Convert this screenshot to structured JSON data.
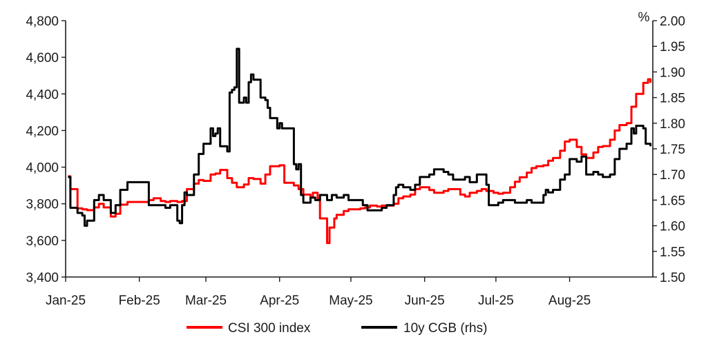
{
  "chart_data": {
    "type": "line",
    "title": "",
    "xlabel": "",
    "ylabel": "",
    "y2label": "%",
    "x_ticks": [
      "Jan-25",
      "Feb-25",
      "Mar-25",
      "Apr-25",
      "May-25",
      "Jun-25",
      "Jul-25",
      "Aug-25"
    ],
    "ylim": [
      3400,
      4800
    ],
    "y_ticks": [
      "3,400",
      "3,600",
      "3,800",
      "4,000",
      "4,200",
      "4,400",
      "4,600",
      "4,800"
    ],
    "y2lim": [
      1.5,
      2.0
    ],
    "y2_ticks": [
      "1.50",
      "1.55",
      "1.60",
      "1.65",
      "1.70",
      "1.75",
      "1.80",
      "1.85",
      "1.90",
      "1.95",
      "2.00"
    ],
    "grid": false,
    "legend_position": "bottom",
    "colors": {
      "csi": "#ff0000",
      "cgb": "#000000",
      "axis": "#1a1a1a"
    },
    "series": [
      {
        "name": "CSI 300 index",
        "axis": "left",
        "points": [
          [
            "2025-01-02",
            3950
          ],
          [
            "2025-01-03",
            3880
          ],
          [
            "2025-01-06",
            3775
          ],
          [
            "2025-01-08",
            3770
          ],
          [
            "2025-01-10",
            3765
          ],
          [
            "2025-01-13",
            3780
          ],
          [
            "2025-01-15",
            3800
          ],
          [
            "2025-01-17",
            3780
          ],
          [
            "2025-01-20",
            3730
          ],
          [
            "2025-01-22",
            3745
          ],
          [
            "2025-01-24",
            3795
          ],
          [
            "2025-01-27",
            3810
          ],
          [
            "2025-02-05",
            3820
          ],
          [
            "2025-02-07",
            3830
          ],
          [
            "2025-02-10",
            3815
          ],
          [
            "2025-02-12",
            3810
          ],
          [
            "2025-02-14",
            3815
          ],
          [
            "2025-02-17",
            3810
          ],
          [
            "2025-02-19",
            3815
          ],
          [
            "2025-02-21",
            3880
          ],
          [
            "2025-02-24",
            3910
          ],
          [
            "2025-02-26",
            3930
          ],
          [
            "2025-02-28",
            3925
          ],
          [
            "2025-03-03",
            3960
          ],
          [
            "2025-03-05",
            3965
          ],
          [
            "2025-03-07",
            3985
          ],
          [
            "2025-03-10",
            3940
          ],
          [
            "2025-03-12",
            3915
          ],
          [
            "2025-03-14",
            3890
          ],
          [
            "2025-03-17",
            3905
          ],
          [
            "2025-03-19",
            3940
          ],
          [
            "2025-03-21",
            3935
          ],
          [
            "2025-03-24",
            3910
          ],
          [
            "2025-03-26",
            3960
          ],
          [
            "2025-03-28",
            4005
          ],
          [
            "2025-03-31",
            4005
          ],
          [
            "2025-04-01",
            4010
          ],
          [
            "2025-04-03",
            3915
          ],
          [
            "2025-04-07",
            3900
          ],
          [
            "2025-04-09",
            3880
          ],
          [
            "2025-04-11",
            3850
          ],
          [
            "2025-04-14",
            3835
          ],
          [
            "2025-04-15",
            3860
          ],
          [
            "2025-04-17",
            3830
          ],
          [
            "2025-04-18",
            3720
          ],
          [
            "2025-04-21",
            3585
          ],
          [
            "2025-04-22",
            3670
          ],
          [
            "2025-04-24",
            3720
          ],
          [
            "2025-04-25",
            3740
          ],
          [
            "2025-04-28",
            3760
          ],
          [
            "2025-04-30",
            3770
          ],
          [
            "2025-05-05",
            3775
          ],
          [
            "2025-05-07",
            3780
          ],
          [
            "2025-05-09",
            3790
          ],
          [
            "2025-05-12",
            3785
          ],
          [
            "2025-05-14",
            3790
          ],
          [
            "2025-05-16",
            3790
          ],
          [
            "2025-05-19",
            3800
          ],
          [
            "2025-05-21",
            3830
          ],
          [
            "2025-05-23",
            3840
          ],
          [
            "2025-05-26",
            3850
          ],
          [
            "2025-05-28",
            3880
          ],
          [
            "2025-05-30",
            3890
          ],
          [
            "2025-06-03",
            3875
          ],
          [
            "2025-06-05",
            3860
          ],
          [
            "2025-06-09",
            3870
          ],
          [
            "2025-06-11",
            3880
          ],
          [
            "2025-06-13",
            3880
          ],
          [
            "2025-06-16",
            3850
          ],
          [
            "2025-06-18",
            3840
          ],
          [
            "2025-06-20",
            3860
          ],
          [
            "2025-06-23",
            3870
          ],
          [
            "2025-06-25",
            3880
          ],
          [
            "2025-06-27",
            3870
          ],
          [
            "2025-06-30",
            3860
          ],
          [
            "2025-07-02",
            3855
          ],
          [
            "2025-07-04",
            3860
          ],
          [
            "2025-07-07",
            3890
          ],
          [
            "2025-07-09",
            3920
          ],
          [
            "2025-07-11",
            3945
          ],
          [
            "2025-07-14",
            3970
          ],
          [
            "2025-07-16",
            3995
          ],
          [
            "2025-07-18",
            4005
          ],
          [
            "2025-07-21",
            4010
          ],
          [
            "2025-07-23",
            4035
          ],
          [
            "2025-07-25",
            4050
          ],
          [
            "2025-07-28",
            4090
          ],
          [
            "2025-07-30",
            4140
          ],
          [
            "2025-08-01",
            4150
          ],
          [
            "2025-08-04",
            4110
          ],
          [
            "2025-08-06",
            4070
          ],
          [
            "2025-08-08",
            4050
          ],
          [
            "2025-08-11",
            4080
          ],
          [
            "2025-08-13",
            4110
          ],
          [
            "2025-08-15",
            4115
          ],
          [
            "2025-08-18",
            4150
          ],
          [
            "2025-08-20",
            4200
          ],
          [
            "2025-08-22",
            4230
          ],
          [
            "2025-08-25",
            4240
          ],
          [
            "2025-08-27",
            4330
          ],
          [
            "2025-08-29",
            4400
          ],
          [
            "2025-09-01",
            4460
          ],
          [
            "2025-09-03",
            4480
          ],
          [
            "2025-09-04",
            4460
          ]
        ]
      },
      {
        "name": "10y CGB (rhs)",
        "axis": "right",
        "points": [
          [
            "2025-01-02",
            1.695
          ],
          [
            "2025-01-03",
            1.635
          ],
          [
            "2025-01-06",
            1.625
          ],
          [
            "2025-01-08",
            1.62
          ],
          [
            "2025-01-09",
            1.6
          ],
          [
            "2025-01-10",
            1.61
          ],
          [
            "2025-01-13",
            1.65
          ],
          [
            "2025-01-15",
            1.66
          ],
          [
            "2025-01-17",
            1.65
          ],
          [
            "2025-01-20",
            1.625
          ],
          [
            "2025-01-22",
            1.64
          ],
          [
            "2025-01-24",
            1.67
          ],
          [
            "2025-01-27",
            1.685
          ],
          [
            "2025-02-05",
            1.64
          ],
          [
            "2025-02-07",
            1.64
          ],
          [
            "2025-02-10",
            1.64
          ],
          [
            "2025-02-12",
            1.635
          ],
          [
            "2025-02-14",
            1.64
          ],
          [
            "2025-02-17",
            1.61
          ],
          [
            "2025-02-18",
            1.605
          ],
          [
            "2025-02-19",
            1.64
          ],
          [
            "2025-02-20",
            1.665
          ],
          [
            "2025-02-21",
            1.66
          ],
          [
            "2025-02-24",
            1.7
          ],
          [
            "2025-02-26",
            1.74
          ],
          [
            "2025-02-28",
            1.76
          ],
          [
            "2025-03-03",
            1.79
          ],
          [
            "2025-03-04",
            1.775
          ],
          [
            "2025-03-05",
            1.78
          ],
          [
            "2025-03-06",
            1.79
          ],
          [
            "2025-03-07",
            1.755
          ],
          [
            "2025-03-10",
            1.745
          ],
          [
            "2025-03-11",
            1.86
          ],
          [
            "2025-03-12",
            1.865
          ],
          [
            "2025-03-13",
            1.87
          ],
          [
            "2025-03-14",
            1.945
          ],
          [
            "2025-03-15",
            1.84
          ],
          [
            "2025-03-17",
            1.85
          ],
          [
            "2025-03-18",
            1.84
          ],
          [
            "2025-03-19",
            1.88
          ],
          [
            "2025-03-20",
            1.895
          ],
          [
            "2025-03-21",
            1.885
          ],
          [
            "2025-03-24",
            1.85
          ],
          [
            "2025-03-26",
            1.845
          ],
          [
            "2025-03-27",
            1.83
          ],
          [
            "2025-03-28",
            1.81
          ],
          [
            "2025-03-31",
            1.79
          ],
          [
            "2025-04-01",
            1.8
          ],
          [
            "2025-04-02",
            1.79
          ],
          [
            "2025-04-03",
            1.79
          ],
          [
            "2025-04-07",
            1.72
          ],
          [
            "2025-04-08",
            1.71
          ],
          [
            "2025-04-09",
            1.72
          ],
          [
            "2025-04-10",
            1.66
          ],
          [
            "2025-04-11",
            1.645
          ],
          [
            "2025-04-14",
            1.655
          ],
          [
            "2025-04-16",
            1.65
          ],
          [
            "2025-04-18",
            1.66
          ],
          [
            "2025-04-21",
            1.65
          ],
          [
            "2025-04-23",
            1.66
          ],
          [
            "2025-04-25",
            1.655
          ],
          [
            "2025-04-28",
            1.66
          ],
          [
            "2025-04-30",
            1.65
          ],
          [
            "2025-05-06",
            1.64
          ],
          [
            "2025-05-08",
            1.63
          ],
          [
            "2025-05-09",
            1.63
          ],
          [
            "2025-05-12",
            1.63
          ],
          [
            "2025-05-14",
            1.635
          ],
          [
            "2025-05-16",
            1.64
          ],
          [
            "2025-05-19",
            1.66
          ],
          [
            "2025-05-20",
            1.675
          ],
          [
            "2025-05-21",
            1.68
          ],
          [
            "2025-05-23",
            1.675
          ],
          [
            "2025-05-26",
            1.67
          ],
          [
            "2025-05-28",
            1.68
          ],
          [
            "2025-05-30",
            1.695
          ],
          [
            "2025-06-03",
            1.7
          ],
          [
            "2025-06-05",
            1.71
          ],
          [
            "2025-06-09",
            1.705
          ],
          [
            "2025-06-11",
            1.7
          ],
          [
            "2025-06-13",
            1.69
          ],
          [
            "2025-06-16",
            1.69
          ],
          [
            "2025-06-18",
            1.695
          ],
          [
            "2025-06-20",
            1.685
          ],
          [
            "2025-06-23",
            1.7
          ],
          [
            "2025-06-25",
            1.7
          ],
          [
            "2025-06-27",
            1.68
          ],
          [
            "2025-06-28",
            1.64
          ],
          [
            "2025-06-30",
            1.64
          ],
          [
            "2025-07-02",
            1.645
          ],
          [
            "2025-07-04",
            1.65
          ],
          [
            "2025-07-07",
            1.65
          ],
          [
            "2025-07-09",
            1.645
          ],
          [
            "2025-07-11",
            1.645
          ],
          [
            "2025-07-14",
            1.65
          ],
          [
            "2025-07-16",
            1.645
          ],
          [
            "2025-07-18",
            1.645
          ],
          [
            "2025-07-21",
            1.66
          ],
          [
            "2025-07-22",
            1.67
          ],
          [
            "2025-07-23",
            1.665
          ],
          [
            "2025-07-25",
            1.67
          ],
          [
            "2025-07-28",
            1.69
          ],
          [
            "2025-07-30",
            1.7
          ],
          [
            "2025-08-01",
            1.73
          ],
          [
            "2025-08-04",
            1.725
          ],
          [
            "2025-08-06",
            1.735
          ],
          [
            "2025-08-08",
            1.7
          ],
          [
            "2025-08-11",
            1.705
          ],
          [
            "2025-08-13",
            1.7
          ],
          [
            "2025-08-15",
            1.695
          ],
          [
            "2025-08-18",
            1.7
          ],
          [
            "2025-08-20",
            1.73
          ],
          [
            "2025-08-22",
            1.75
          ],
          [
            "2025-08-25",
            1.76
          ],
          [
            "2025-08-27",
            1.79
          ],
          [
            "2025-08-28",
            1.78
          ],
          [
            "2025-08-29",
            1.795
          ],
          [
            "2025-09-01",
            1.79
          ],
          [
            "2025-09-02",
            1.76
          ],
          [
            "2025-09-04",
            1.755
          ]
        ]
      }
    ]
  }
}
